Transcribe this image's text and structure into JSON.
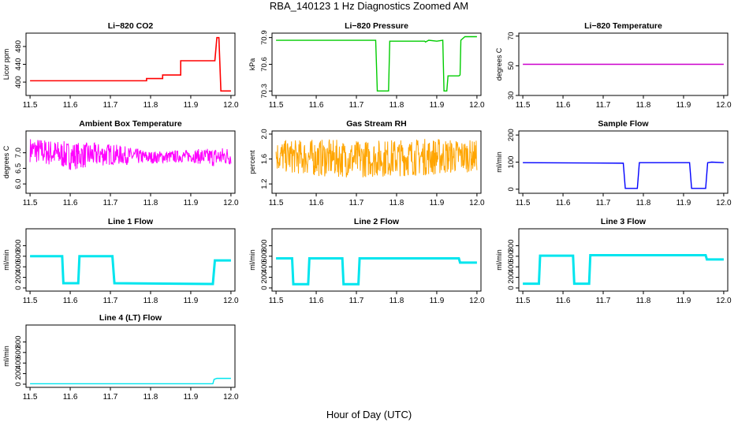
{
  "figure": {
    "title": "RBA_140123  1 Hz Diagnostics Zoomed AM",
    "xlabel": "Hour of Day (UTC)"
  },
  "chart_data": [
    {
      "id": "co2",
      "type": "line",
      "title": "Li−820 CO2",
      "ylabel": "Licor ppm",
      "color": "#ff0000",
      "xlim": [
        11.49,
        12.01
      ],
      "ylim": [
        370,
        510
      ],
      "xticks": [
        "11.5",
        "11.6",
        "11.7",
        "11.8",
        "11.9",
        "12.0"
      ],
      "yticks": [
        "400",
        "440",
        "480"
      ],
      "grid": false,
      "x": [
        11.5,
        11.79,
        11.79,
        11.83,
        11.83,
        11.875,
        11.875,
        11.96,
        11.965,
        11.97,
        11.975,
        12.0
      ],
      "y": [
        403,
        403,
        408,
        408,
        416,
        416,
        448,
        448,
        500,
        500,
        380,
        380
      ]
    },
    {
      "id": "pressure",
      "type": "line",
      "title": "Li−820 Pressure",
      "ylabel": "kPa",
      "color": "#00cc00",
      "xlim": [
        11.49,
        12.01
      ],
      "ylim": [
        70.25,
        70.95
      ],
      "xticks": [
        "11.5",
        "11.6",
        "11.7",
        "11.8",
        "11.9",
        "12.0"
      ],
      "yticks": [
        "70.3",
        "70.6",
        "70.9"
      ],
      "grid": false,
      "x": [
        11.5,
        11.748,
        11.752,
        11.78,
        11.783,
        11.87,
        11.872,
        11.88,
        11.9,
        11.915,
        11.918,
        11.925,
        11.928,
        11.955,
        11.958,
        11.96,
        11.97,
        11.972,
        12.0
      ],
      "y": [
        70.87,
        70.87,
        70.3,
        70.3,
        70.86,
        70.86,
        70.85,
        70.87,
        70.86,
        70.87,
        70.3,
        70.3,
        70.47,
        70.47,
        70.48,
        70.87,
        70.91,
        70.91,
        70.91
      ]
    },
    {
      "id": "licor-temp",
      "type": "line",
      "title": "Li−820 Temperature",
      "ylabel": "degrees C",
      "color": "#cc00cc",
      "xlim": [
        11.49,
        12.01
      ],
      "ylim": [
        30,
        72
      ],
      "xticks": [
        "11.5",
        "11.6",
        "11.7",
        "11.8",
        "11.9",
        "12.0"
      ],
      "yticks": [
        "30",
        "50",
        "70"
      ],
      "grid": false,
      "x": [
        11.5,
        12.0
      ],
      "y": [
        51,
        51
      ]
    },
    {
      "id": "box-temp",
      "type": "line",
      "title": "Ambient Box Temperature",
      "ylabel": "degrees C",
      "color": "#ff00ff",
      "xlim": [
        11.49,
        12.01
      ],
      "ylim": [
        5.7,
        7.7
      ],
      "xticks": [
        "11.5",
        "11.6",
        "11.7",
        "11.8",
        "11.9",
        "12.0"
      ],
      "yticks": [
        "6.0",
        "6.5",
        "7.0"
      ],
      "grid": false,
      "x": [
        11.5,
        11.6,
        11.7,
        11.8,
        11.9,
        11.95,
        12.0
      ],
      "y": [
        7.1,
        6.9,
        6.95,
        6.85,
        6.9,
        6.85,
        6.9
      ],
      "band": [
        0.4,
        0.45,
        0.35,
        0.2,
        0.2,
        0.3,
        0.3
      ]
    },
    {
      "id": "rh",
      "type": "line",
      "title": "Gas Stream RH",
      "ylabel": "percent",
      "color": "#ffa500",
      "xlim": [
        11.49,
        12.01
      ],
      "ylim": [
        1.05,
        2.05
      ],
      "xticks": [
        "11.5",
        "11.6",
        "11.7",
        "11.8",
        "11.9",
        "12.0"
      ],
      "yticks": [
        "1.2",
        "1.6",
        "2.0"
      ],
      "grid": false,
      "x": [
        11.5,
        11.6,
        11.7,
        11.8,
        11.9,
        12.0
      ],
      "y": [
        1.65,
        1.62,
        1.6,
        1.62,
        1.64,
        1.65
      ],
      "band": [
        0.25,
        0.3,
        0.3,
        0.3,
        0.3,
        0.25
      ]
    },
    {
      "id": "sample-flow",
      "type": "line",
      "title": "Sample Flow",
      "ylabel": "ml/min",
      "color": "#0000ff",
      "xlim": [
        11.49,
        12.01
      ],
      "ylim": [
        -15,
        215
      ],
      "xticks": [
        "11.5",
        "11.6",
        "11.7",
        "11.8",
        "11.9",
        "12.0"
      ],
      "yticks": [
        "0",
        "100",
        "200"
      ],
      "grid": false,
      "x": [
        11.5,
        11.75,
        11.755,
        11.785,
        11.79,
        11.915,
        11.92,
        11.955,
        11.96,
        11.97,
        12.0
      ],
      "y": [
        98,
        96,
        3,
        3,
        98,
        98,
        3,
        3,
        98,
        100,
        98
      ]
    },
    {
      "id": "line1",
      "type": "line",
      "title": "Line 1 Flow",
      "ylabel": "ml/min",
      "color": "#00e5ee",
      "xlim": [
        11.49,
        12.01
      ],
      "ylim": [
        -60,
        1120
      ],
      "xticks": [
        "11.5",
        "11.6",
        "11.7",
        "11.8",
        "11.9",
        "12.0"
      ],
      "yticks": [
        "0",
        "200",
        "400",
        "600",
        "800"
      ],
      "grid": false,
      "x": [
        11.5,
        11.58,
        11.583,
        11.62,
        11.623,
        11.705,
        11.71,
        11.955,
        11.96,
        12.0
      ],
      "y": [
        600,
        600,
        90,
        90,
        600,
        600,
        90,
        75,
        520,
        520
      ]
    },
    {
      "id": "line2",
      "type": "line",
      "title": "Line 2 Flow",
      "ylabel": "ml/min",
      "color": "#00e5ee",
      "xlim": [
        11.49,
        12.01
      ],
      "ylim": [
        -60,
        1120
      ],
      "xticks": [
        "11.5",
        "11.6",
        "11.7",
        "11.8",
        "11.9",
        "12.0"
      ],
      "yticks": [
        "0",
        "200",
        "400",
        "600",
        "800"
      ],
      "grid": false,
      "x": [
        11.5,
        11.54,
        11.543,
        11.58,
        11.583,
        11.665,
        11.668,
        11.705,
        11.708,
        11.955,
        11.958,
        12.0
      ],
      "y": [
        560,
        560,
        70,
        70,
        560,
        560,
        70,
        70,
        560,
        560,
        480,
        480
      ]
    },
    {
      "id": "line3",
      "type": "line",
      "title": "Line 3 Flow",
      "ylabel": "ml/min",
      "color": "#00e5ee",
      "xlim": [
        11.49,
        12.01
      ],
      "ylim": [
        -60,
        1120
      ],
      "xticks": [
        "11.5",
        "11.6",
        "11.7",
        "11.8",
        "11.9",
        "12.0"
      ],
      "yticks": [
        "0",
        "200",
        "400",
        "600",
        "800"
      ],
      "grid": false,
      "x": [
        11.5,
        11.54,
        11.543,
        11.625,
        11.628,
        11.665,
        11.668,
        11.955,
        11.958,
        12.0
      ],
      "y": [
        80,
        80,
        610,
        610,
        80,
        80,
        620,
        620,
        540,
        540
      ]
    },
    {
      "id": "line4",
      "type": "line",
      "title": "Line 4 (LT) Flow",
      "ylabel": "ml/min",
      "color": "#00e5ee",
      "xlim": [
        11.49,
        12.01
      ],
      "ylim": [
        -60,
        1120
      ],
      "xticks": [
        "11.5",
        "11.6",
        "11.7",
        "11.8",
        "11.9",
        "12.0"
      ],
      "yticks": [
        "0",
        "200",
        "400",
        "600",
        "800"
      ],
      "grid": false,
      "x": [
        11.5,
        11.955,
        11.958,
        11.965,
        12.0
      ],
      "y": [
        8,
        8,
        90,
        110,
        110
      ]
    }
  ]
}
